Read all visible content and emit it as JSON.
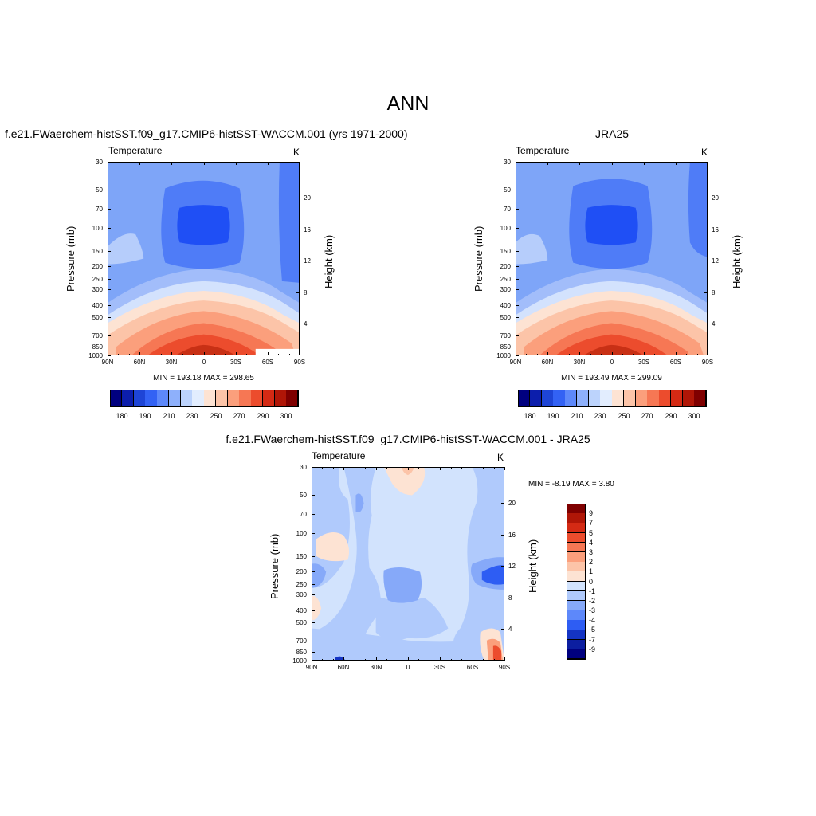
{
  "page": {
    "title": "ANN"
  },
  "panels": [
    {
      "id": "model",
      "title": "f.e21.FWaerchem-histSST.f09_g17.CMIP6-histSST-WACCM.001 (yrs 1971-2000)",
      "variable": "Temperature",
      "units": "K",
      "ylabel": "Pressure (mb)",
      "y2label": "Height (km)",
      "minmax": "MIN = 193.18  MAX = 298.65"
    },
    {
      "id": "obs",
      "title": "JRA25",
      "variable": "Temperature",
      "units": "K",
      "ylabel": "Pressure (mb)",
      "y2label": "Height (km)",
      "minmax": "MIN = 193.49  MAX = 299.09"
    },
    {
      "id": "diff",
      "title": "f.e21.FWaerchem-histSST.f09_g17.CMIP6-histSST-WACCM.001 - JRA25",
      "variable": "Temperature",
      "units": "K",
      "ylabel": "Pressure (mb)",
      "y2label": "Height (km)",
      "minmax": "MIN =  -8.19  MAX =   3.80"
    }
  ],
  "axes": {
    "x_ticks": [
      "90N",
      "60N",
      "30N",
      "0",
      "30S",
      "60S",
      "90S"
    ],
    "x_values": [
      90,
      60,
      30,
      0,
      -30,
      -60,
      -90
    ],
    "pressure_ticks": [
      "30",
      "50",
      "70",
      "100",
      "150",
      "200",
      "250",
      "300",
      "400",
      "500",
      "700",
      "850",
      "1000"
    ],
    "pressure_values": [
      30,
      50,
      70,
      100,
      150,
      200,
      250,
      300,
      400,
      500,
      700,
      850,
      1000
    ],
    "height_ticks": [
      "4",
      "8",
      "12",
      "16",
      "20"
    ],
    "height_values": [
      4,
      8,
      12,
      16,
      20
    ]
  },
  "colorbars": {
    "abs_labels": [
      "180",
      "190",
      "210",
      "230",
      "250",
      "270",
      "290",
      "300"
    ],
    "abs_colors": [
      "#00007f",
      "#0c1eac",
      "#1e45d6",
      "#3362f4",
      "#5d88fa",
      "#8eb0fb",
      "#bcd3fc",
      "#e2edfe",
      "#fde3d3",
      "#fcc4a8",
      "#fb9f7c",
      "#f67754",
      "#ec4c2d",
      "#d42a14",
      "#b01607",
      "#7f0000"
    ],
    "diff_labels": [
      "9",
      "7",
      "5",
      "4",
      "3",
      "2",
      "1",
      "0",
      "-1",
      "-2",
      "-3",
      "-4",
      "-5",
      "-7",
      "-9"
    ],
    "diff_colors": [
      "#7f0000",
      "#b01607",
      "#d42a14",
      "#ec4c2d",
      "#f67754",
      "#fb9f7c",
      "#fcc4a8",
      "#fde3d3",
      "#d2e3fd",
      "#b0cafc",
      "#86a9f9",
      "#5d88fa",
      "#2e5df3",
      "#1434c4",
      "#0c1ea0",
      "#00007f"
    ]
  },
  "chart_data": [
    {
      "type": "heatmap",
      "title": "f.e21.FWaerchem-histSST.f09_g17.CMIP6-histSST-WACCM.001 (yrs 1971-2000)",
      "xlabel": "",
      "ylabel": "Pressure (mb)",
      "y2label": "Height (km)",
      "variable": "Temperature",
      "units": "K",
      "x_range": [
        90,
        -90
      ],
      "y_range": [
        1000,
        30
      ],
      "y_scale": "log",
      "min": 193.18,
      "max": 298.65,
      "contour_levels": [
        180,
        185,
        190,
        200,
        210,
        220,
        230,
        240,
        250,
        260,
        270,
        280,
        290,
        295,
        300
      ]
    },
    {
      "type": "heatmap",
      "title": "JRA25",
      "xlabel": "",
      "ylabel": "Pressure (mb)",
      "y2label": "Height (km)",
      "variable": "Temperature",
      "units": "K",
      "x_range": [
        90,
        -90
      ],
      "y_range": [
        1000,
        30
      ],
      "y_scale": "log",
      "min": 193.49,
      "max": 299.09,
      "contour_levels": [
        180,
        185,
        190,
        200,
        210,
        220,
        230,
        240,
        250,
        260,
        270,
        280,
        290,
        295,
        300
      ]
    },
    {
      "type": "heatmap",
      "title": "f.e21.FWaerchem-histSST.f09_g17.CMIP6-histSST-WACCM.001 - JRA25",
      "xlabel": "",
      "ylabel": "Pressure (mb)",
      "y2label": "Height (km)",
      "variable": "Temperature",
      "units": "K",
      "x_range": [
        90,
        -90
      ],
      "y_range": [
        1000,
        30
      ],
      "y_scale": "log",
      "min": -8.19,
      "max": 3.8,
      "contour_levels": [
        -9,
        -7,
        -5,
        -4,
        -3,
        -2,
        -1,
        0,
        1,
        2,
        3,
        4,
        5,
        7,
        9
      ]
    }
  ]
}
